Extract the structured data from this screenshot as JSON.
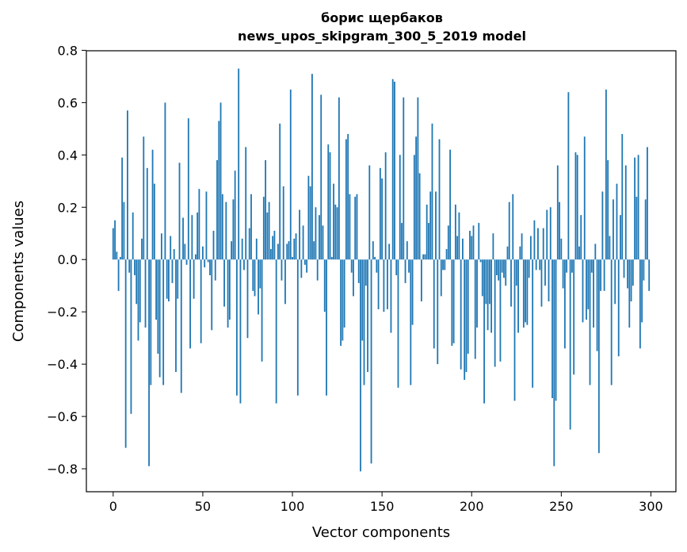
{
  "chart_data": {
    "type": "bar",
    "title": [
      "борис щербаков",
      "news_upos_skipgram_300_5_2019 model"
    ],
    "xlabel": "Vector components",
    "ylabel": "Components values",
    "xlim": [
      -14.95,
      313.95
    ],
    "ylim": [
      -0.8878,
      0.7983
    ],
    "xticks": [
      0,
      50,
      100,
      150,
      200,
      250,
      300
    ],
    "xtick_labels": [
      "0",
      "50",
      "100",
      "150",
      "200",
      "250",
      "300"
    ],
    "yticks": [
      -0.8,
      -0.6,
      -0.4,
      -0.2,
      0.0,
      0.2,
      0.4,
      0.6,
      0.8
    ],
    "ytick_labels": [
      "−0.8",
      "−0.6",
      "−0.4",
      "−0.2",
      "0.0",
      "0.2",
      "0.4",
      "0.6",
      "0.8"
    ],
    "grid": false,
    "bar_color": "#1f77b4",
    "x": "0..299 (component index)",
    "values": [
      0.12,
      0.15,
      0.03,
      -0.12,
      0.01,
      0.39,
      0.22,
      -0.72,
      0.57,
      -0.05,
      -0.59,
      0.18,
      -0.06,
      -0.17,
      -0.31,
      -0.24,
      0.08,
      0.47,
      -0.26,
      0.35,
      -0.79,
      -0.48,
      0.42,
      0.29,
      -0.23,
      -0.36,
      -0.45,
      0.1,
      -0.48,
      0.6,
      -0.15,
      -0.16,
      0.09,
      -0.09,
      0.04,
      -0.43,
      -0.15,
      0.37,
      -0.51,
      0.16,
      0.06,
      -0.02,
      0.54,
      -0.34,
      0.17,
      -0.15,
      0.02,
      0.18,
      0.27,
      -0.32,
      0.05,
      -0.03,
      0.26,
      -0.01,
      -0.06,
      -0.27,
      0.11,
      -0.08,
      0.38,
      0.53,
      0.6,
      0.25,
      -0.18,
      0.22,
      -0.26,
      -0.23,
      0.07,
      0.23,
      0.34,
      -0.52,
      0.73,
      -0.55,
      0.08,
      -0.04,
      0.43,
      -0.3,
      0.12,
      0.25,
      -0.12,
      -0.14,
      0.08,
      -0.21,
      -0.11,
      -0.39,
      0.24,
      0.38,
      0.18,
      0.22,
      0.04,
      0.09,
      0.11,
      -0.55,
      0.06,
      0.52,
      -0.08,
      0.28,
      -0.17,
      0.06,
      0.07,
      0.65,
      0.01,
      0.08,
      0.1,
      -0.52,
      0.19,
      -0.07,
      0.13,
      -0.02,
      -0.05,
      0.32,
      0.28,
      0.71,
      0.07,
      0.2,
      -0.08,
      0.17,
      0.63,
      0.13,
      -0.2,
      -0.52,
      0.44,
      0.41,
      0.01,
      0.29,
      0.21,
      0.2,
      0.62,
      -0.33,
      -0.31,
      -0.26,
      0.46,
      0.48,
      0.25,
      -0.05,
      -0.14,
      0.24,
      0.25,
      -0.09,
      -0.81,
      -0.31,
      -0.48,
      -0.1,
      -0.43,
      0.36,
      -0.78,
      0.07,
      0.01,
      -0.05,
      -0.19,
      0.35,
      0.31,
      -0.2,
      0.41,
      -0.19,
      0.06,
      -0.28,
      0.69,
      0.68,
      -0.06,
      -0.49,
      0.4,
      0.14,
      0.62,
      -0.09,
      0.07,
      -0.05,
      -0.48,
      -0.25,
      0.4,
      0.47,
      0.62,
      0.33,
      -0.16,
      0.02,
      0.02,
      0.21,
      0.14,
      0.26,
      0.52,
      -0.34,
      0.26,
      -0.4,
      0.46,
      -0.14,
      -0.04,
      -0.04,
      0.04,
      0.13,
      0.42,
      -0.33,
      -0.32,
      0.21,
      0.09,
      0.18,
      -0.42,
      0.08,
      -0.46,
      -0.43,
      -0.36,
      0.11,
      0.09,
      0.13,
      -0.38,
      -0.26,
      0.14,
      -0.01,
      -0.14,
      -0.55,
      -0.17,
      -0.27,
      -0.17,
      -0.28,
      0.1,
      -0.41,
      -0.06,
      -0.08,
      -0.39,
      -0.05,
      -0.07,
      -0.1,
      0.05,
      0.22,
      -0.18,
      0.25,
      -0.54,
      -0.1,
      -0.28,
      0.05,
      0.1,
      -0.26,
      -0.24,
      -0.25,
      -0.07,
      0.09,
      -0.49,
      0.15,
      -0.04,
      0.12,
      -0.04,
      -0.18,
      0.12,
      -0.1,
      0.19,
      -0.16,
      0.2,
      -0.53,
      -0.79,
      -0.54,
      0.36,
      0.22,
      0.08,
      -0.11,
      -0.34,
      -0.05,
      0.64,
      -0.65,
      -0.05,
      -0.44,
      0.41,
      0.4,
      0.05,
      0.17,
      -0.24,
      0.47,
      -0.23,
      -0.19,
      -0.48,
      -0.05,
      -0.26,
      0.06,
      -0.35,
      -0.74,
      -0.12,
      0.26,
      -0.12,
      0.65,
      0.38,
      0.09,
      -0.48,
      0.23,
      -0.17,
      0.29,
      -0.37,
      0.17,
      0.48,
      -0.07,
      0.36,
      -0.11,
      -0.26,
      -0.16,
      -0.1,
      0.39,
      0.24,
      0.4,
      -0.34,
      -0.24,
      -0.08,
      0.23,
      0.43,
      -0.12
    ]
  }
}
